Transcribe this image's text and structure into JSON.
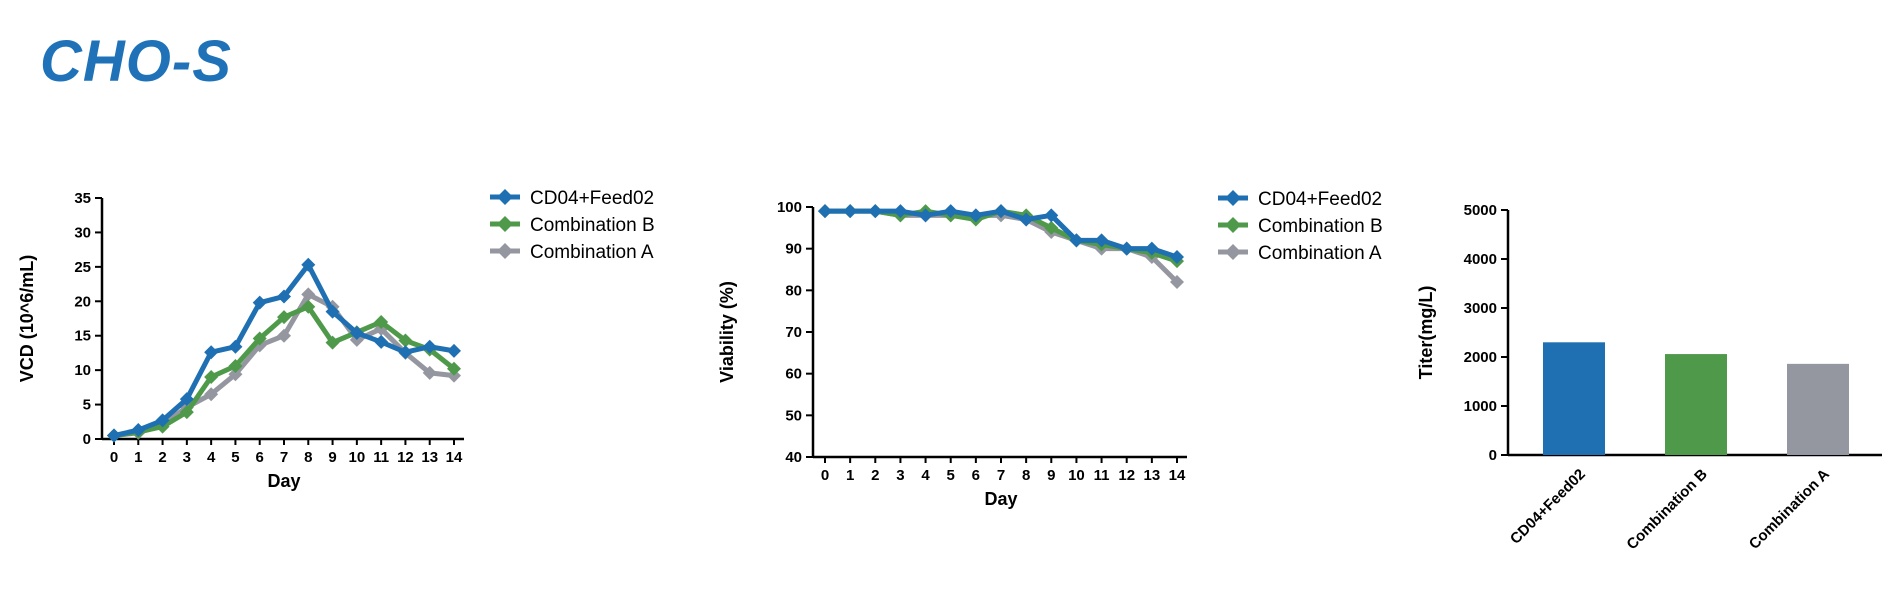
{
  "page": {
    "title": "CHO-S",
    "title_color": "#1f72b8"
  },
  "colors": {
    "CD04+Feed02": "#1f6fb3",
    "Combination B": "#4f9a4a",
    "Combination A": "#9597a0"
  },
  "chart_data": [
    {
      "type": "line",
      "xlabel": "Day",
      "ylabel": "VCD (10^6/mL)",
      "x": [
        0,
        1,
        2,
        3,
        4,
        5,
        6,
        7,
        8,
        9,
        10,
        11,
        12,
        13,
        14
      ],
      "ylim": [
        0,
        35
      ],
      "yticks": [
        0,
        5,
        10,
        15,
        20,
        25,
        30,
        35
      ],
      "legend": "right",
      "series": [
        {
          "name": "CD04+Feed02",
          "values": [
            0.5,
            1.3,
            2.7,
            5.8,
            12.6,
            13.4,
            19.8,
            20.7,
            25.3,
            18.5,
            15.4,
            14.1,
            12.6,
            13.4,
            12.8
          ]
        },
        {
          "name": "Combination B",
          "values": [
            0.5,
            1.0,
            1.8,
            3.9,
            9.0,
            10.6,
            14.6,
            17.7,
            19.2,
            14.0,
            15.5,
            17.0,
            14.3,
            13.0,
            10.2
          ]
        },
        {
          "name": "Combination A",
          "values": [
            0.5,
            0.9,
            2.1,
            4.6,
            6.5,
            9.4,
            13.6,
            15.0,
            21.0,
            19.2,
            14.4,
            16.0,
            12.5,
            9.6,
            9.2
          ]
        }
      ]
    },
    {
      "type": "line",
      "xlabel": "Day",
      "ylabel": "Viability (%)",
      "x": [
        0,
        1,
        2,
        3,
        4,
        5,
        6,
        7,
        8,
        9,
        10,
        11,
        12,
        13,
        14
      ],
      "ylim": [
        40,
        100
      ],
      "yticks": [
        40,
        50,
        60,
        70,
        80,
        90,
        100
      ],
      "legend": "right",
      "series": [
        {
          "name": "CD04+Feed02",
          "values": [
            99,
            99,
            99,
            99,
            98,
            99,
            98,
            99,
            97,
            98,
            92,
            92,
            90,
            90,
            88
          ]
        },
        {
          "name": "Combination B",
          "values": [
            99,
            99,
            99,
            98,
            99,
            98,
            97,
            99,
            98,
            95,
            92,
            91,
            90,
            89,
            87
          ]
        },
        {
          "name": "Combination A",
          "values": [
            99,
            99,
            99,
            98,
            98,
            98,
            98,
            98,
            97,
            94,
            92,
            90,
            90,
            88,
            82
          ]
        }
      ]
    },
    {
      "type": "bar",
      "ylabel": "Titer(mg/L)",
      "categories": [
        "CD04+Feed02",
        "Combination B",
        "Combination A"
      ],
      "values": [
        2300,
        2060,
        1860
      ],
      "ylim": [
        0,
        5000
      ],
      "yticks": [
        0,
        1000,
        2000,
        3000,
        4000,
        5000
      ]
    }
  ]
}
